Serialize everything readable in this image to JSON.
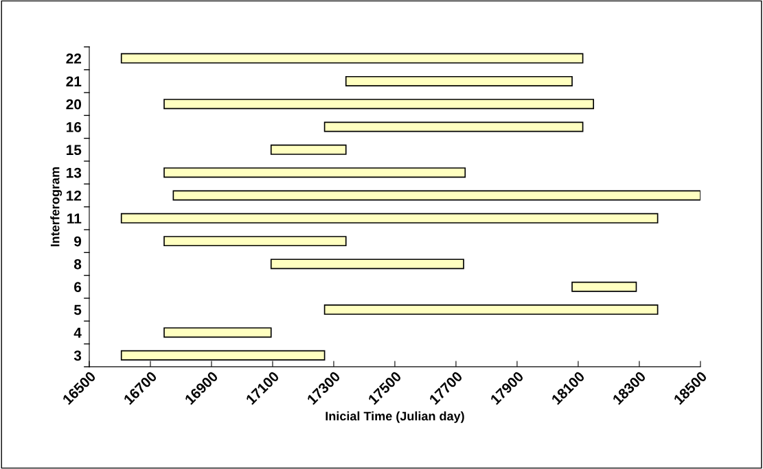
{
  "chart_data": {
    "type": "bar",
    "orientation": "horizontal",
    "xlabel": "Inicial Time (Julian day)",
    "ylabel": "Interferogram",
    "categories": [
      "22",
      "21",
      "20",
      "16",
      "15",
      "13",
      "12",
      "11",
      "9",
      "8",
      "6",
      "5",
      "4",
      "3"
    ],
    "base": [
      16605,
      17340,
      16745,
      17270,
      17095,
      16745,
      16775,
      16605,
      16745,
      17095,
      18080,
      17270,
      16745,
      16605
    ],
    "values": [
      1510,
      740,
      1405,
      845,
      245,
      985,
      1725,
      1755,
      595,
      630,
      210,
      1090,
      350,
      665
    ],
    "color": "#ffffc0",
    "xlim": [
      16500,
      18500
    ],
    "xticks": [
      16500,
      16700,
      16900,
      17100,
      17300,
      17500,
      17700,
      17900,
      18100,
      18300,
      18500
    ],
    "grid": false,
    "legend": false
  }
}
